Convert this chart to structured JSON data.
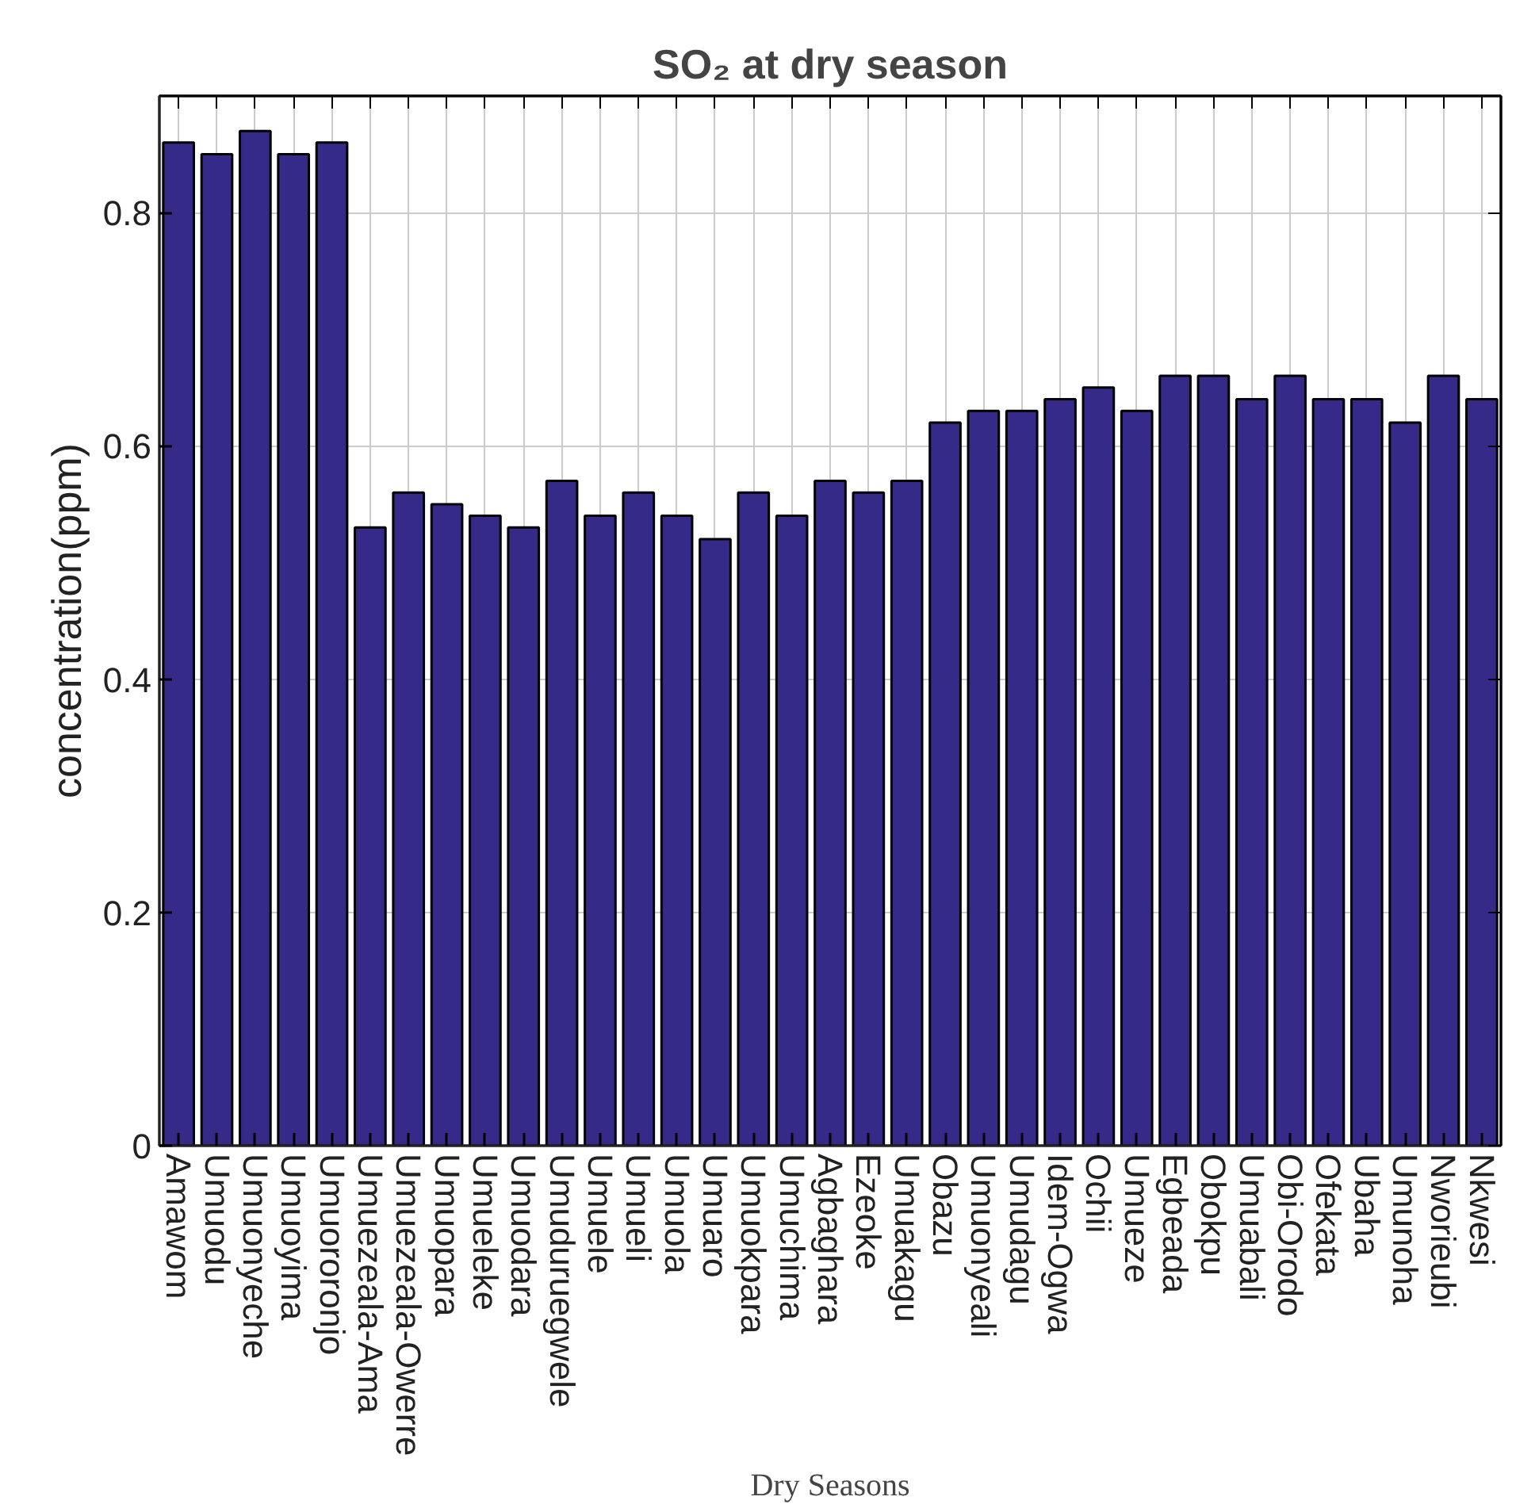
{
  "chart_data": {
    "type": "bar",
    "title": "SO₂ at dry season",
    "xlabel": "Dry Seasons",
    "ylabel": "concentration(ppm)",
    "categories": [
      "Amawom",
      "Umuodu",
      "Umuonyeche",
      "Umuoyima",
      "Umuororonjo",
      "Umuezeala-Ama",
      "Umuezeala-Owerre",
      "Umuopara",
      "Umueleke",
      "Umuodara",
      "Umuduruegwele",
      "Umuele",
      "Umueli",
      "Umuola",
      "Umuaro",
      "Umuokpara",
      "Umuchima",
      "Agbaghara",
      "Ezeoke",
      "Umuakagu",
      "Obazu",
      "Umuonyeali",
      "Umudagu",
      "Idem-Ogwa",
      "Ochii",
      "Umueze",
      "Egbeada",
      "Obokpu",
      "Umuabali",
      "Obi-Orodo",
      "Ofekata",
      "Ubaha",
      "Umunoha",
      "Nworieubi",
      "Nkwesi"
    ],
    "values": [
      0.86,
      0.85,
      0.87,
      0.85,
      0.86,
      0.53,
      0.56,
      0.55,
      0.54,
      0.53,
      0.57,
      0.54,
      0.56,
      0.54,
      0.52,
      0.56,
      0.54,
      0.57,
      0.56,
      0.57,
      0.62,
      0.63,
      0.63,
      0.64,
      0.65,
      0.63,
      0.66,
      0.66,
      0.64,
      0.66,
      0.64,
      0.64,
      0.62,
      0.66,
      0.64
    ],
    "color": "#352a87",
    "ylim": [
      0,
      0.9
    ],
    "yticks": [
      0,
      0.2,
      0.4,
      0.6,
      0.8
    ],
    "grid": true
  }
}
